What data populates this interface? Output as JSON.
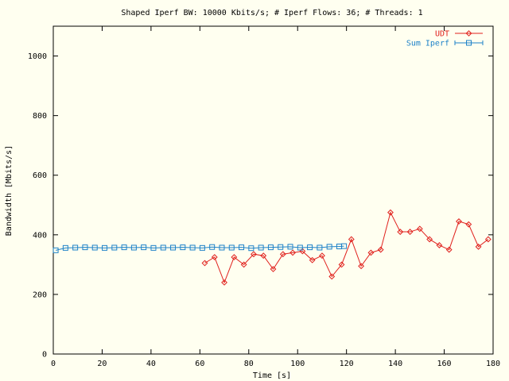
{
  "chart_data": {
    "type": "line",
    "title": "Shaped Iperf BW: 10000 Kbits/s; # Iperf Flows: 36; # Threads: 1",
    "xlabel": "Time [s]",
    "ylabel": "Bandwidth [Mbits/s]",
    "xlim": [
      0,
      180
    ],
    "ylim": [
      0,
      1100
    ],
    "xticks": [
      0,
      20,
      40,
      60,
      80,
      100,
      120,
      140,
      160,
      180
    ],
    "yticks": [
      0,
      200,
      400,
      600,
      800,
      1000
    ],
    "grid": false,
    "legend_position": "top-right",
    "background": "#fffff0",
    "series": [
      {
        "name": "UDT",
        "color": "#e0201c",
        "marker": "diamond",
        "x": [
          62,
          66,
          70,
          74,
          78,
          82,
          86,
          90,
          94,
          98,
          102,
          106,
          110,
          114,
          118,
          122,
          126,
          130,
          134,
          138,
          142,
          146,
          150,
          154,
          158,
          162,
          166,
          170,
          174,
          178
        ],
        "y": [
          305,
          325,
          240,
          325,
          300,
          335,
          330,
          285,
          335,
          340,
          345,
          315,
          330,
          260,
          300,
          385,
          295,
          340,
          350,
          475,
          410,
          410,
          420,
          385,
          365,
          350,
          445,
          435,
          360,
          385
        ]
      },
      {
        "name": "Sum Iperf",
        "color": "#1e82c8",
        "marker": "square",
        "x": [
          1,
          5,
          9,
          13,
          17,
          21,
          25,
          29,
          33,
          37,
          41,
          45,
          49,
          53,
          57,
          61,
          65,
          69,
          73,
          77,
          81,
          85,
          89,
          93,
          97,
          101,
          105,
          109,
          113,
          117,
          119
        ],
        "y": [
          348,
          356,
          357,
          358,
          357,
          356,
          357,
          358,
          357,
          358,
          356,
          357,
          357,
          358,
          357,
          356,
          359,
          357,
          357,
          358,
          355,
          357,
          358,
          359,
          360,
          357,
          358,
          357,
          360,
          361,
          362
        ]
      }
    ]
  }
}
